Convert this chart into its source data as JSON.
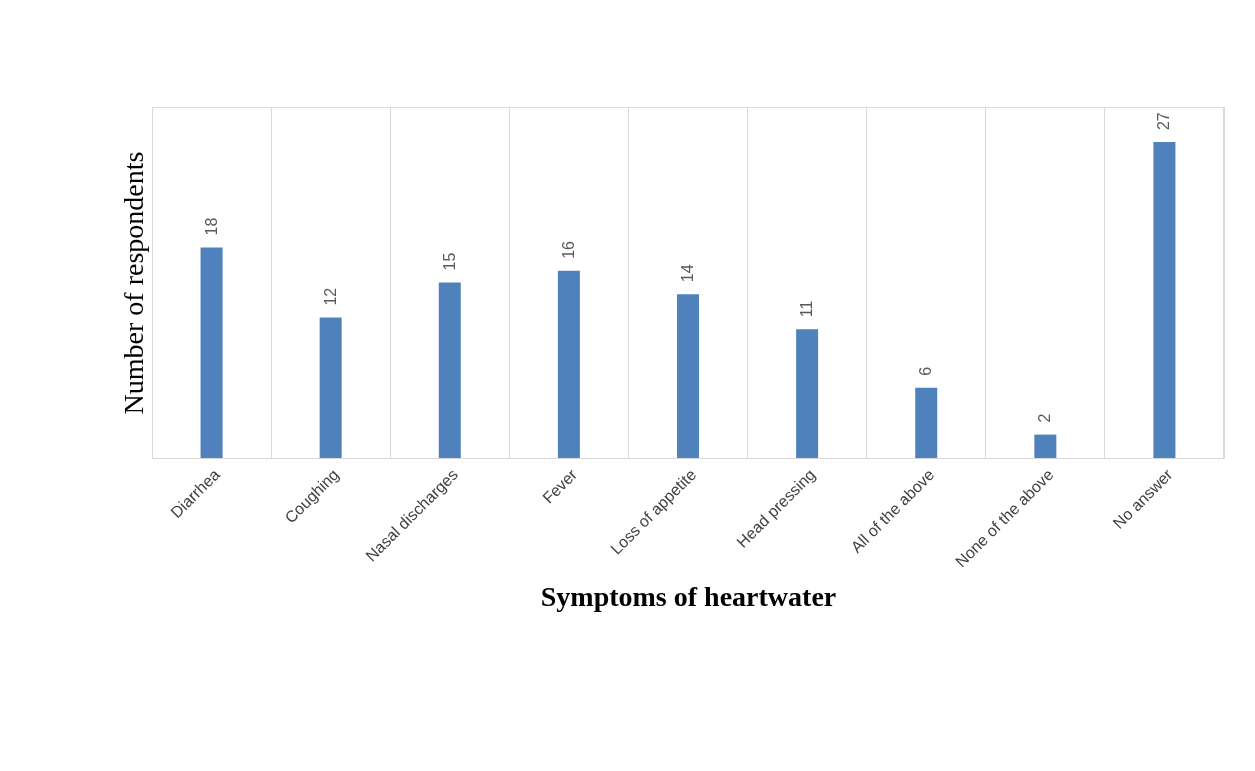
{
  "chart_data": {
    "type": "bar",
    "xlabel": "Symptoms of heartwater",
    "ylabel": "Number of respondents",
    "categories": [
      "Diarrhea",
      "Coughing",
      "Nasal discharges",
      "Fever",
      "Loss of appetite",
      "Head pressing",
      "All of the above",
      "None of the above",
      "No answer"
    ],
    "values": [
      18,
      12,
      15,
      16,
      14,
      11,
      6,
      2,
      27
    ],
    "color": "#4f81bd",
    "data_labels": true,
    "grid": "x"
  }
}
